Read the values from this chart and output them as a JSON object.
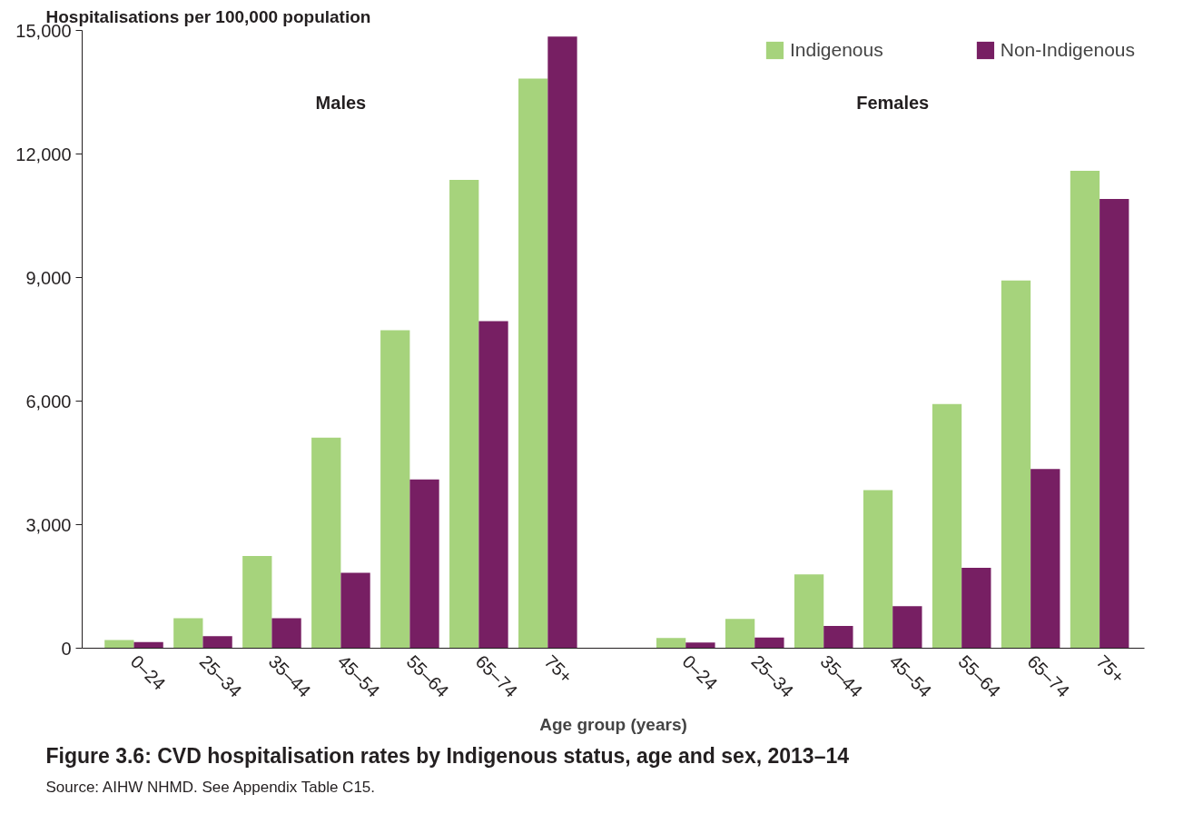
{
  "chart_data": {
    "type": "bar",
    "title": "Figure 3.6: CVD hospitalisation rates by Indigenous status, age and sex, 2013–14",
    "xlabel": "Age group (years)",
    "ylabel": "Hospitalisations per 100,000 population",
    "categories": [
      "0–24",
      "25–34",
      "35–44",
      "45–54",
      "55–64",
      "65–74",
      "75+",
      null,
      "0–24",
      "25–34",
      "35–44",
      "45–54",
      "55–64",
      "65–74",
      "75+"
    ],
    "series": [
      {
        "name": "Indigenous",
        "color": "#a6d37c",
        "values": [
          200,
          730,
          2240,
          5110,
          7720,
          11370,
          13830,
          null,
          250,
          710,
          1790,
          3840,
          5930,
          8930,
          11590
        ]
      },
      {
        "name": "Non-Indigenous",
        "color": "#771f63",
        "values": [
          150,
          290,
          730,
          1830,
          4100,
          7940,
          14850,
          null,
          140,
          260,
          540,
          1020,
          1950,
          4350,
          10910
        ]
      }
    ],
    "ylim": [
      0,
      15000
    ],
    "yticks": [
      0,
      {
        "value": 3000,
        "label": "3,000"
      },
      {
        "value": 6000,
        "label": "6,000"
      },
      {
        "value": 9000,
        "label": "9,000"
      },
      {
        "value": 12000,
        "label": "12,000"
      },
      {
        "value": 15000,
        "label": "15,000"
      }
    ],
    "legend": "top right",
    "grid": false,
    "annotations": [
      "Males",
      "Females",
      "Source: AIHW NHMD. See Appendix Table C15."
    ]
  }
}
